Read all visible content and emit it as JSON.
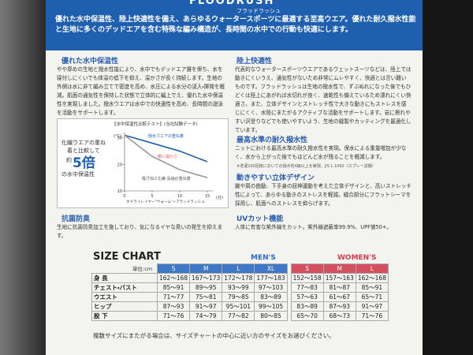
{
  "header": {
    "brand": "FLOODRUSH",
    "brand_kana": "フラッドラッシュ",
    "intro": "優れた水中保温性、陸上快適性を備え、あらゆるウォータースポーツに最適する至高ウエア。優れた耐久撥水性能と生地に多くのデッドエアを含む特殊な編み構造が、長時間の水中での行動も快適にします。"
  },
  "features_left": [
    {
      "title": "優れた水中保温性",
      "body": "やや厚めの生地と撥水性能により、水中でもデッドエア層を保ち、水を寝付しにくいでも体温の低下を抑え、温かさが長く持続します。生地の外側は水に非て編み立てで密度を高め、水圧による水分の浸入・揮発を軽減。肌面の通気性を保持した状態で立体的に編上でえ、優れた水中保温性を実現しました。撥水ウエアは水中での快適性を高め、長時間の遊泳を活動をサポートします。"
    },
    {
      "title": "抗菌防臭",
      "body": "生地に抗菌防臭加工を施しており、気になるイヤな臭いの発生を抑えます。"
    }
  ],
  "comparison": {
    "headline_pre": "化繊ウエアの重ね着と比較して",
    "multiplier_pre": "約",
    "multiplier": "5倍",
    "headline_post": "の水中保温性",
    "chart_data": {
      "type": "line",
      "title": "【水中保温性比較テスト】(当社試験データ)",
      "y_label": "(°C)",
      "x_label": "(分)",
      "annotation": "暖い温かさ",
      "caption": "ホドライレイヤー\"ウォーム\"+フラッドラッシュ",
      "x": [
        0,
        5,
        10,
        15
      ],
      "xlim": [
        0,
        16
      ],
      "xticks": [
        0,
        5,
        10,
        15
      ],
      "ylim": [
        10,
        32
      ],
      "yticks": [
        10,
        20,
        30
      ],
      "series": [
        {
          "name": "撥水ウエアの重ね着",
          "color": "#1f5fb0",
          "values": [
            31,
            28,
            25,
            21
          ]
        },
        {
          "name": "吸汗加工化繊 長袖の重ね着",
          "color": "#9a9a9a",
          "values": [
            31,
            23,
            18,
            15
          ]
        }
      ]
    }
  },
  "features_right": [
    {
      "title": "陸上快適性",
      "body": "代表的なウォータースポーツウエアであるウェットスーツなどは、陸上では動きにくいうえ、通気性がないため非常にムレやすく、快適とは言い難いものです。フラッドラッシュは生地の撥水性で、ずぶぬれになった後でもひどくは陸上にあがれば水切れが良く、速乾性も備えているため濡れにくい快適さ。また、立体デザインとストレッチ性で大きな動きにもストレスを感じにくく、水陸にまたがるアクティブな活動をサポートします。岩に擦れやすい沢登りなどでも使いやすいよう、生地の縫製やカッティングを最適化しています。"
    },
    {
      "title": "最高水準の耐久撥水性",
      "body": "ニットにおける最高水準の耐久撥水性を実現。保水による重量増加が少なく、水から上がった後でもほどんど水が残ることを軽減します。",
      "note": "※洗濯100回後においての撥水性4級以上を実現。JIS L 1092（スプレー試験）"
    },
    {
      "title": "動きやすい立体デザイン",
      "body": "腕や肩の曲動、下手身の屈伸運動を考えた立体デザインと、高いストレッチ性によって、あらゆる動きのストレスを軽減。縫合部分にフラットシーマを採用し、肌面へのストレスを抑らげます。"
    },
    {
      "title": "UVカット機能",
      "body": "人体に有害な紫外線をカット。紫外線遮蔽率99.9%、UPF値50+。"
    }
  ],
  "size_chart": {
    "title": "SIZE CHART",
    "unit": "単位:cm",
    "mens_label": "MEN'S",
    "womens_label": "WOMEN'S",
    "mens_sizes": [
      "S",
      "M",
      "L",
      "XL"
    ],
    "womens_sizes": [
      "S",
      "M",
      "L"
    ],
    "rows": [
      {
        "label": "身 長",
        "mens": [
          "162〜168",
          "167〜173",
          "172〜178",
          "177〜183"
        ],
        "womens": [
          "152〜158",
          "157〜163",
          "162〜168"
        ]
      },
      {
        "label": "チェスト・バスト",
        "mens": [
          "85〜91",
          "89〜95",
          "93〜99",
          "97〜103"
        ],
        "womens": [
          "77〜83",
          "81〜87",
          "85〜91"
        ]
      },
      {
        "label": "ウエスト",
        "mens": [
          "71〜77",
          "75〜81",
          "79〜85",
          "83〜89"
        ],
        "womens": [
          "57〜63",
          "61〜67",
          "65〜71"
        ]
      },
      {
        "label": "ヒップ",
        "mens": [
          "87〜93",
          "91〜97",
          "95〜101",
          "99〜105"
        ],
        "womens": [
          "83〜89",
          "87〜93",
          "91〜97"
        ]
      },
      {
        "label": "股 下",
        "mens": [
          "71〜76",
          "74〜79",
          "77〜82",
          "80〜85"
        ],
        "womens": [
          "65〜70",
          "68〜73",
          "71〜76"
        ]
      }
    ],
    "footnote": "複数サイズにまたがる場合は、サイズチャートの中心に近い方のサイズをお選びください。"
  }
}
